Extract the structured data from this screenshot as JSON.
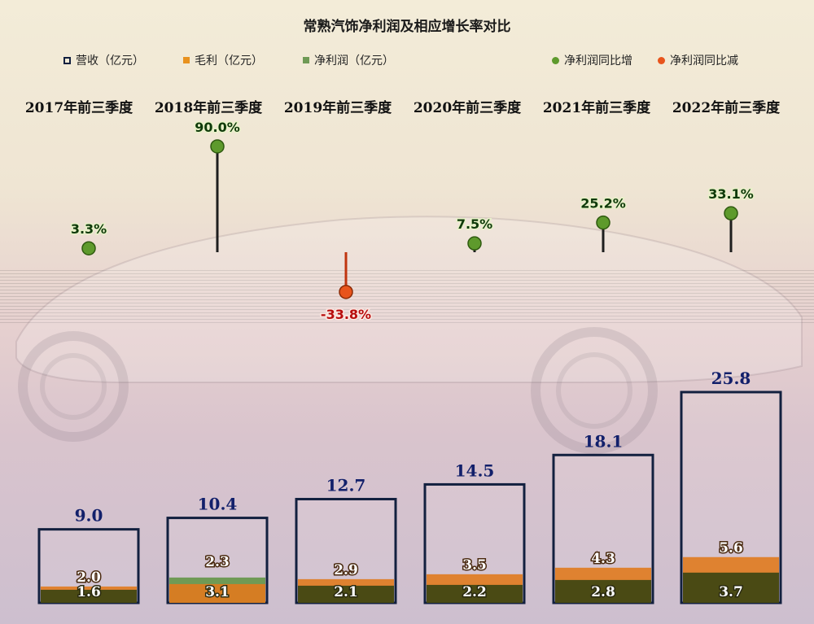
{
  "chart_data": {
    "type": "bar",
    "title": "常熟汽饰净利润及相应增长率对比",
    "categories": [
      "2017年前三季度",
      "2018年前三季度",
      "2019年前三季度",
      "2020年前三季度",
      "2021年前三季度",
      "2022年前三季度"
    ],
    "series": [
      {
        "name": "营收（亿元）",
        "values": [
          9.0,
          10.4,
          12.7,
          14.5,
          18.1,
          25.8
        ],
        "color": "#12203f"
      },
      {
        "name": "毛利（亿元）",
        "values": [
          2.0,
          2.3,
          2.9,
          3.5,
          4.3,
          5.6
        ],
        "color": "#e07a1e"
      },
      {
        "name": "净利润（亿元）",
        "values": [
          1.6,
          3.1,
          2.1,
          2.2,
          2.8,
          3.7
        ],
        "color": "#6f9a55"
      }
    ],
    "growth": {
      "values": [
        3.3,
        90.0,
        -33.8,
        7.5,
        25.2,
        33.1
      ],
      "labels": [
        "3.3%",
        "90.0%",
        "-33.8%",
        "7.5%",
        "25.2%",
        "33.1%"
      ],
      "increase_name": "净利润同比增",
      "decrease_name": "净利润同比减",
      "increase_color": "#5e9a2c",
      "decrease_color": "#e8541c"
    },
    "value_labels": {
      "revenue": [
        "9.0",
        "10.4",
        "12.7",
        "14.5",
        "18.1",
        "25.8"
      ],
      "gross": [
        "2.0",
        "2.3",
        "2.9",
        "3.5",
        "4.3",
        "5.6"
      ],
      "net": [
        "1.6",
        "3.1",
        "2.1",
        "2.2",
        "2.8",
        "3.7"
      ]
    },
    "legend_position": "top"
  }
}
